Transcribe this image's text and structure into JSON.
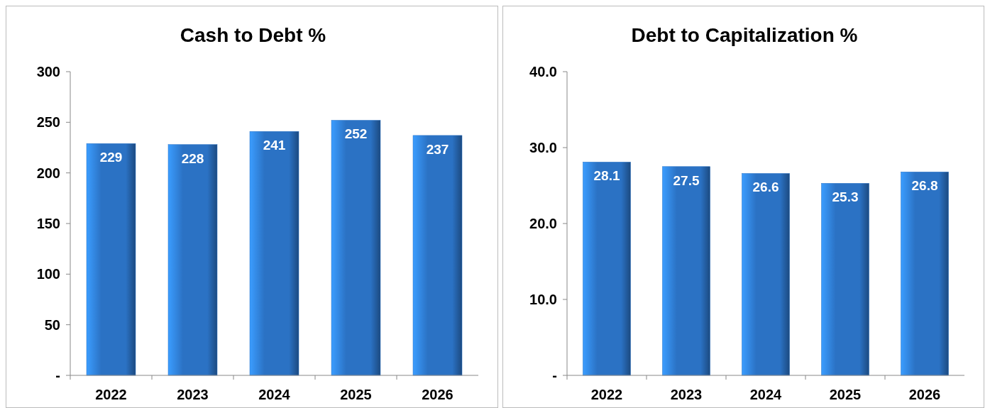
{
  "chart_data": [
    {
      "type": "bar",
      "title": "Cash to Debt %",
      "categories": [
        "2022",
        "2023",
        "2024",
        "2025",
        "2026"
      ],
      "values": [
        229,
        228,
        241,
        252,
        237
      ],
      "color": "#2b72c4",
      "ylim": [
        0,
        300
      ],
      "yticks": [
        {
          "value": 0,
          "label": "-"
        },
        50,
        100,
        150,
        200,
        250,
        300
      ],
      "data_labels": true,
      "grid": false
    },
    {
      "type": "bar",
      "title": "Debt to Capitalization %",
      "categories": [
        "2022",
        "2023",
        "2024",
        "2025",
        "2026"
      ],
      "values": [
        28.1,
        27.5,
        26.6,
        25.3,
        26.8
      ],
      "color": "#2b72c4",
      "ylim": [
        0,
        40
      ],
      "yticks": [
        {
          "value": 0,
          "label": "-"
        },
        {
          "value": 10,
          "label": "10.0"
        },
        {
          "value": 20,
          "label": "20.0"
        },
        {
          "value": 30,
          "label": "30.0"
        },
        {
          "value": 40,
          "label": "40.0"
        }
      ],
      "data_labels": true,
      "grid": false
    }
  ]
}
